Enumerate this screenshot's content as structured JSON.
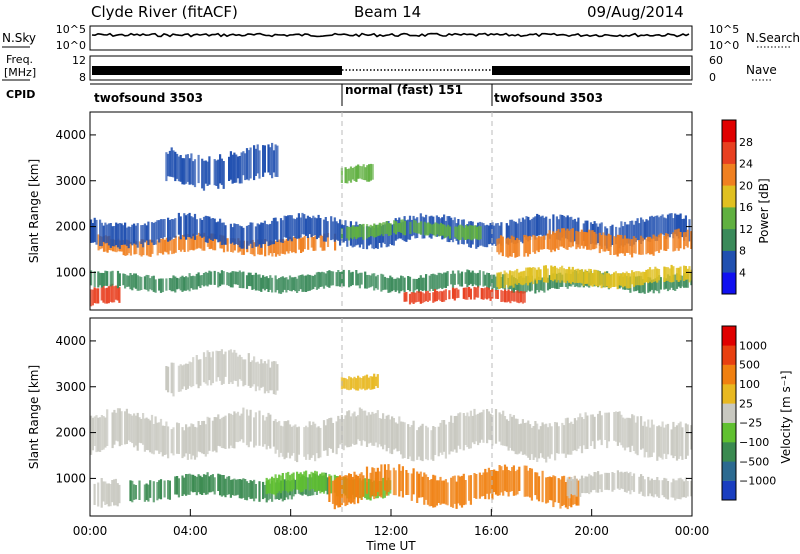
{
  "header": {
    "station": "Clyde River (fitACF)",
    "beam": "Beam 14",
    "date": "09/Aug/2014"
  },
  "top_panels": {
    "nsky_label": "N.Sky",
    "nsky_ticks": [
      "10^5",
      "10^0"
    ],
    "nsearch_label": "N.Search",
    "nsearch_ticks": [
      "10^5",
      "10^0"
    ],
    "freq_label_1": "Freq.",
    "freq_label_2": "[MHz]",
    "freq_ticks": [
      "12",
      "8"
    ],
    "nave_label": "Nave",
    "nave_ticks": [
      "60",
      "0"
    ],
    "cpid_label": "CPID",
    "cpid_segments": [
      {
        "label": "twofsound 3503",
        "start_h": 0,
        "end_h": 10
      },
      {
        "label": "normal (fast) 151",
        "start_h": 10,
        "end_h": 16
      },
      {
        "label": "twofsound 3503",
        "start_h": 16,
        "end_h": 24
      }
    ]
  },
  "chart_data": [
    {
      "type": "heatmap",
      "name": "power",
      "ylabel": "Slant Range [km]",
      "xlabel": "",
      "x_range_h": [
        0,
        24
      ],
      "ylim": [
        180,
        4500
      ],
      "yticks": [
        "1000",
        "2000",
        "3000",
        "4000"
      ],
      "colorbar": {
        "label": "Power [dB]",
        "ticks": [
          "4",
          "8",
          "12",
          "16",
          "20",
          "24",
          "28"
        ],
        "colors": [
          "#1010f0",
          "#2050b0",
          "#3a8a5a",
          "#60b040",
          "#e0c020",
          "#f08020",
          "#e84020",
          "#e00000"
        ]
      },
      "bands": [
        {
          "t0": 0.0,
          "t1": 1.2,
          "r0": 250,
          "r1": 700,
          "color": "#e84020"
        },
        {
          "t0": 0.0,
          "t1": 24.0,
          "r0": 600,
          "r1": 1000,
          "color": "#3a8a5a"
        },
        {
          "t0": 0.3,
          "t1": 9.8,
          "r0": 1400,
          "r1": 1800,
          "color": "#f08020"
        },
        {
          "t0": 0.0,
          "t1": 24.0,
          "r0": 1600,
          "r1": 2200,
          "color": "#2050b0"
        },
        {
          "t0": 10.0,
          "t1": 15.6,
          "r0": 1750,
          "r1": 2100,
          "color": "#60b040"
        },
        {
          "t0": 3.0,
          "t1": 7.5,
          "r0": 2900,
          "r1": 3700,
          "color": "#2050b0"
        },
        {
          "t0": 10.0,
          "t1": 11.3,
          "r0": 2900,
          "r1": 3300,
          "color": "#60b040"
        },
        {
          "t0": 12.5,
          "t1": 17.5,
          "r0": 350,
          "r1": 650,
          "color": "#e84020"
        },
        {
          "t0": 16.2,
          "t1": 24.0,
          "r0": 1400,
          "r1": 1900,
          "color": "#f08020"
        },
        {
          "t0": 16.2,
          "t1": 24.0,
          "r0": 700,
          "r1": 1100,
          "color": "#e0c020"
        }
      ]
    },
    {
      "type": "heatmap",
      "name": "velocity",
      "ylabel": "Slant Range [km]",
      "xlabel": "Time UT",
      "x_range_h": [
        0,
        24
      ],
      "ylim": [
        180,
        4500
      ],
      "xticks": [
        "00:00",
        "04:00",
        "08:00",
        "12:00",
        "16:00",
        "20:00",
        "00:00"
      ],
      "yticks": [
        "1000",
        "2000",
        "3000",
        "4000"
      ],
      "colorbar": {
        "label": "Velocity [m s⁻¹]",
        "ticks": [
          "1000",
          "500",
          "100",
          "25",
          "−25",
          "−100",
          "−500",
          "−1000"
        ],
        "colors": [
          "#1a3ec0",
          "#2c6a90",
          "#3a8a50",
          "#60c030",
          "#c8c8c0",
          "#e8b820",
          "#f08010",
          "#e84010",
          "#e00000"
        ]
      },
      "bands": [
        {
          "t0": 0.0,
          "t1": 24.0,
          "r0": 1500,
          "r1": 2400,
          "color": "#c8c8c0"
        },
        {
          "t0": 3.0,
          "t1": 7.5,
          "r0": 2900,
          "r1": 3700,
          "color": "#c8c8c0"
        },
        {
          "t0": 1.5,
          "t1": 9.5,
          "r0": 550,
          "r1": 1050,
          "color": "#3a8a50"
        },
        {
          "t0": 7.0,
          "t1": 12.0,
          "r0": 600,
          "r1": 1100,
          "color": "#60c030"
        },
        {
          "t0": 10.0,
          "t1": 11.5,
          "r0": 2950,
          "r1": 3300,
          "color": "#e8b820"
        },
        {
          "t0": 9.5,
          "t1": 19.5,
          "r0": 450,
          "r1": 1200,
          "color": "#f08010"
        },
        {
          "t0": 19.0,
          "t1": 24.0,
          "r0": 600,
          "r1": 1100,
          "color": "#c8c8c0"
        },
        {
          "t0": 0.0,
          "t1": 1.2,
          "r0": 250,
          "r1": 900,
          "color": "#c8c8c0"
        }
      ]
    }
  ]
}
